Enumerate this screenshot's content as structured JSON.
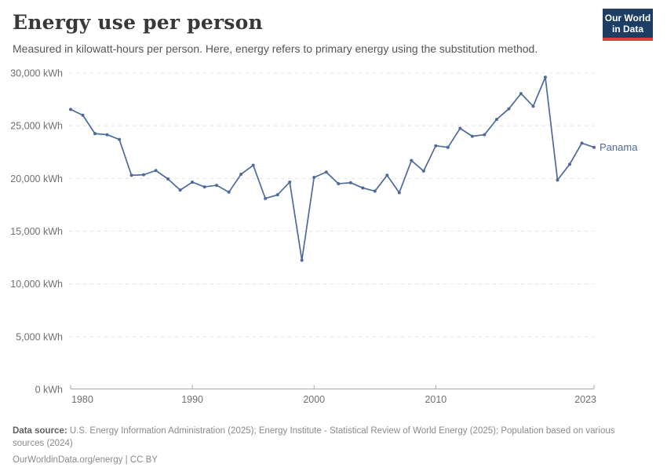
{
  "header": {
    "title": "Energy use per person",
    "subtitle": "Measured in kilowatt-hours per person. Here, energy refers to primary energy using the substitution method.",
    "logo": {
      "line1": "Our World",
      "line2": "in Data",
      "bg_color": "#1d3d63",
      "accent_color": "#dc3e3c"
    }
  },
  "chart_data": {
    "type": "line",
    "title": "Energy use per person",
    "unit": "kWh",
    "xlim": [
      1980,
      2023
    ],
    "ylim": [
      0,
      30000
    ],
    "grid": "horizontal-dashed",
    "legend_position": "end-of-line-label",
    "x_ticks": [
      1980,
      1990,
      2000,
      2010,
      2023
    ],
    "x_tick_labels": [
      "1980",
      "1990",
      "2000",
      "2010",
      "2023"
    ],
    "y_ticks": [
      0,
      5000,
      10000,
      15000,
      20000,
      25000,
      30000
    ],
    "y_tick_labels": [
      "0 kWh",
      "5,000 kWh",
      "10,000 kWh",
      "15,000 kWh",
      "20,000 kWh",
      "25,000 kWh",
      "30,000 kWh"
    ],
    "series": [
      {
        "name": "Panama",
        "color": "#4c6a9c",
        "x": [
          1980,
          1981,
          1982,
          1983,
          1984,
          1985,
          1986,
          1987,
          1988,
          1989,
          1990,
          1991,
          1992,
          1993,
          1994,
          1995,
          1996,
          1997,
          1998,
          1999,
          2000,
          2001,
          2002,
          2003,
          2004,
          2005,
          2006,
          2007,
          2008,
          2009,
          2010,
          2011,
          2012,
          2013,
          2014,
          2015,
          2016,
          2017,
          2018,
          2019,
          2020,
          2021,
          2022,
          2023
        ],
        "values": [
          26550,
          26000,
          24250,
          24150,
          23700,
          20300,
          20350,
          20750,
          19950,
          18900,
          19650,
          19200,
          19350,
          18700,
          20400,
          21250,
          18100,
          18450,
          19650,
          12250,
          20100,
          20600,
          19500,
          19600,
          19100,
          18800,
          20300,
          18650,
          21700,
          20700,
          23100,
          22950,
          24750,
          24000,
          24150,
          25600,
          26600,
          28050,
          26850,
          29600,
          19850,
          21350,
          23350,
          22950
        ]
      }
    ],
    "colors": {
      "gridline": "#e0e0e0",
      "axis_line": "#a8a8a8",
      "tick_label": "#707070"
    }
  },
  "footer": {
    "source_label": "Data source:",
    "source_text": "U.S. Energy Information Administration (2025); Energy Institute - Statistical Review of World Energy (2025); Population based on various sources (2024)",
    "note": "OurWorldinData.org/energy | CC BY"
  }
}
